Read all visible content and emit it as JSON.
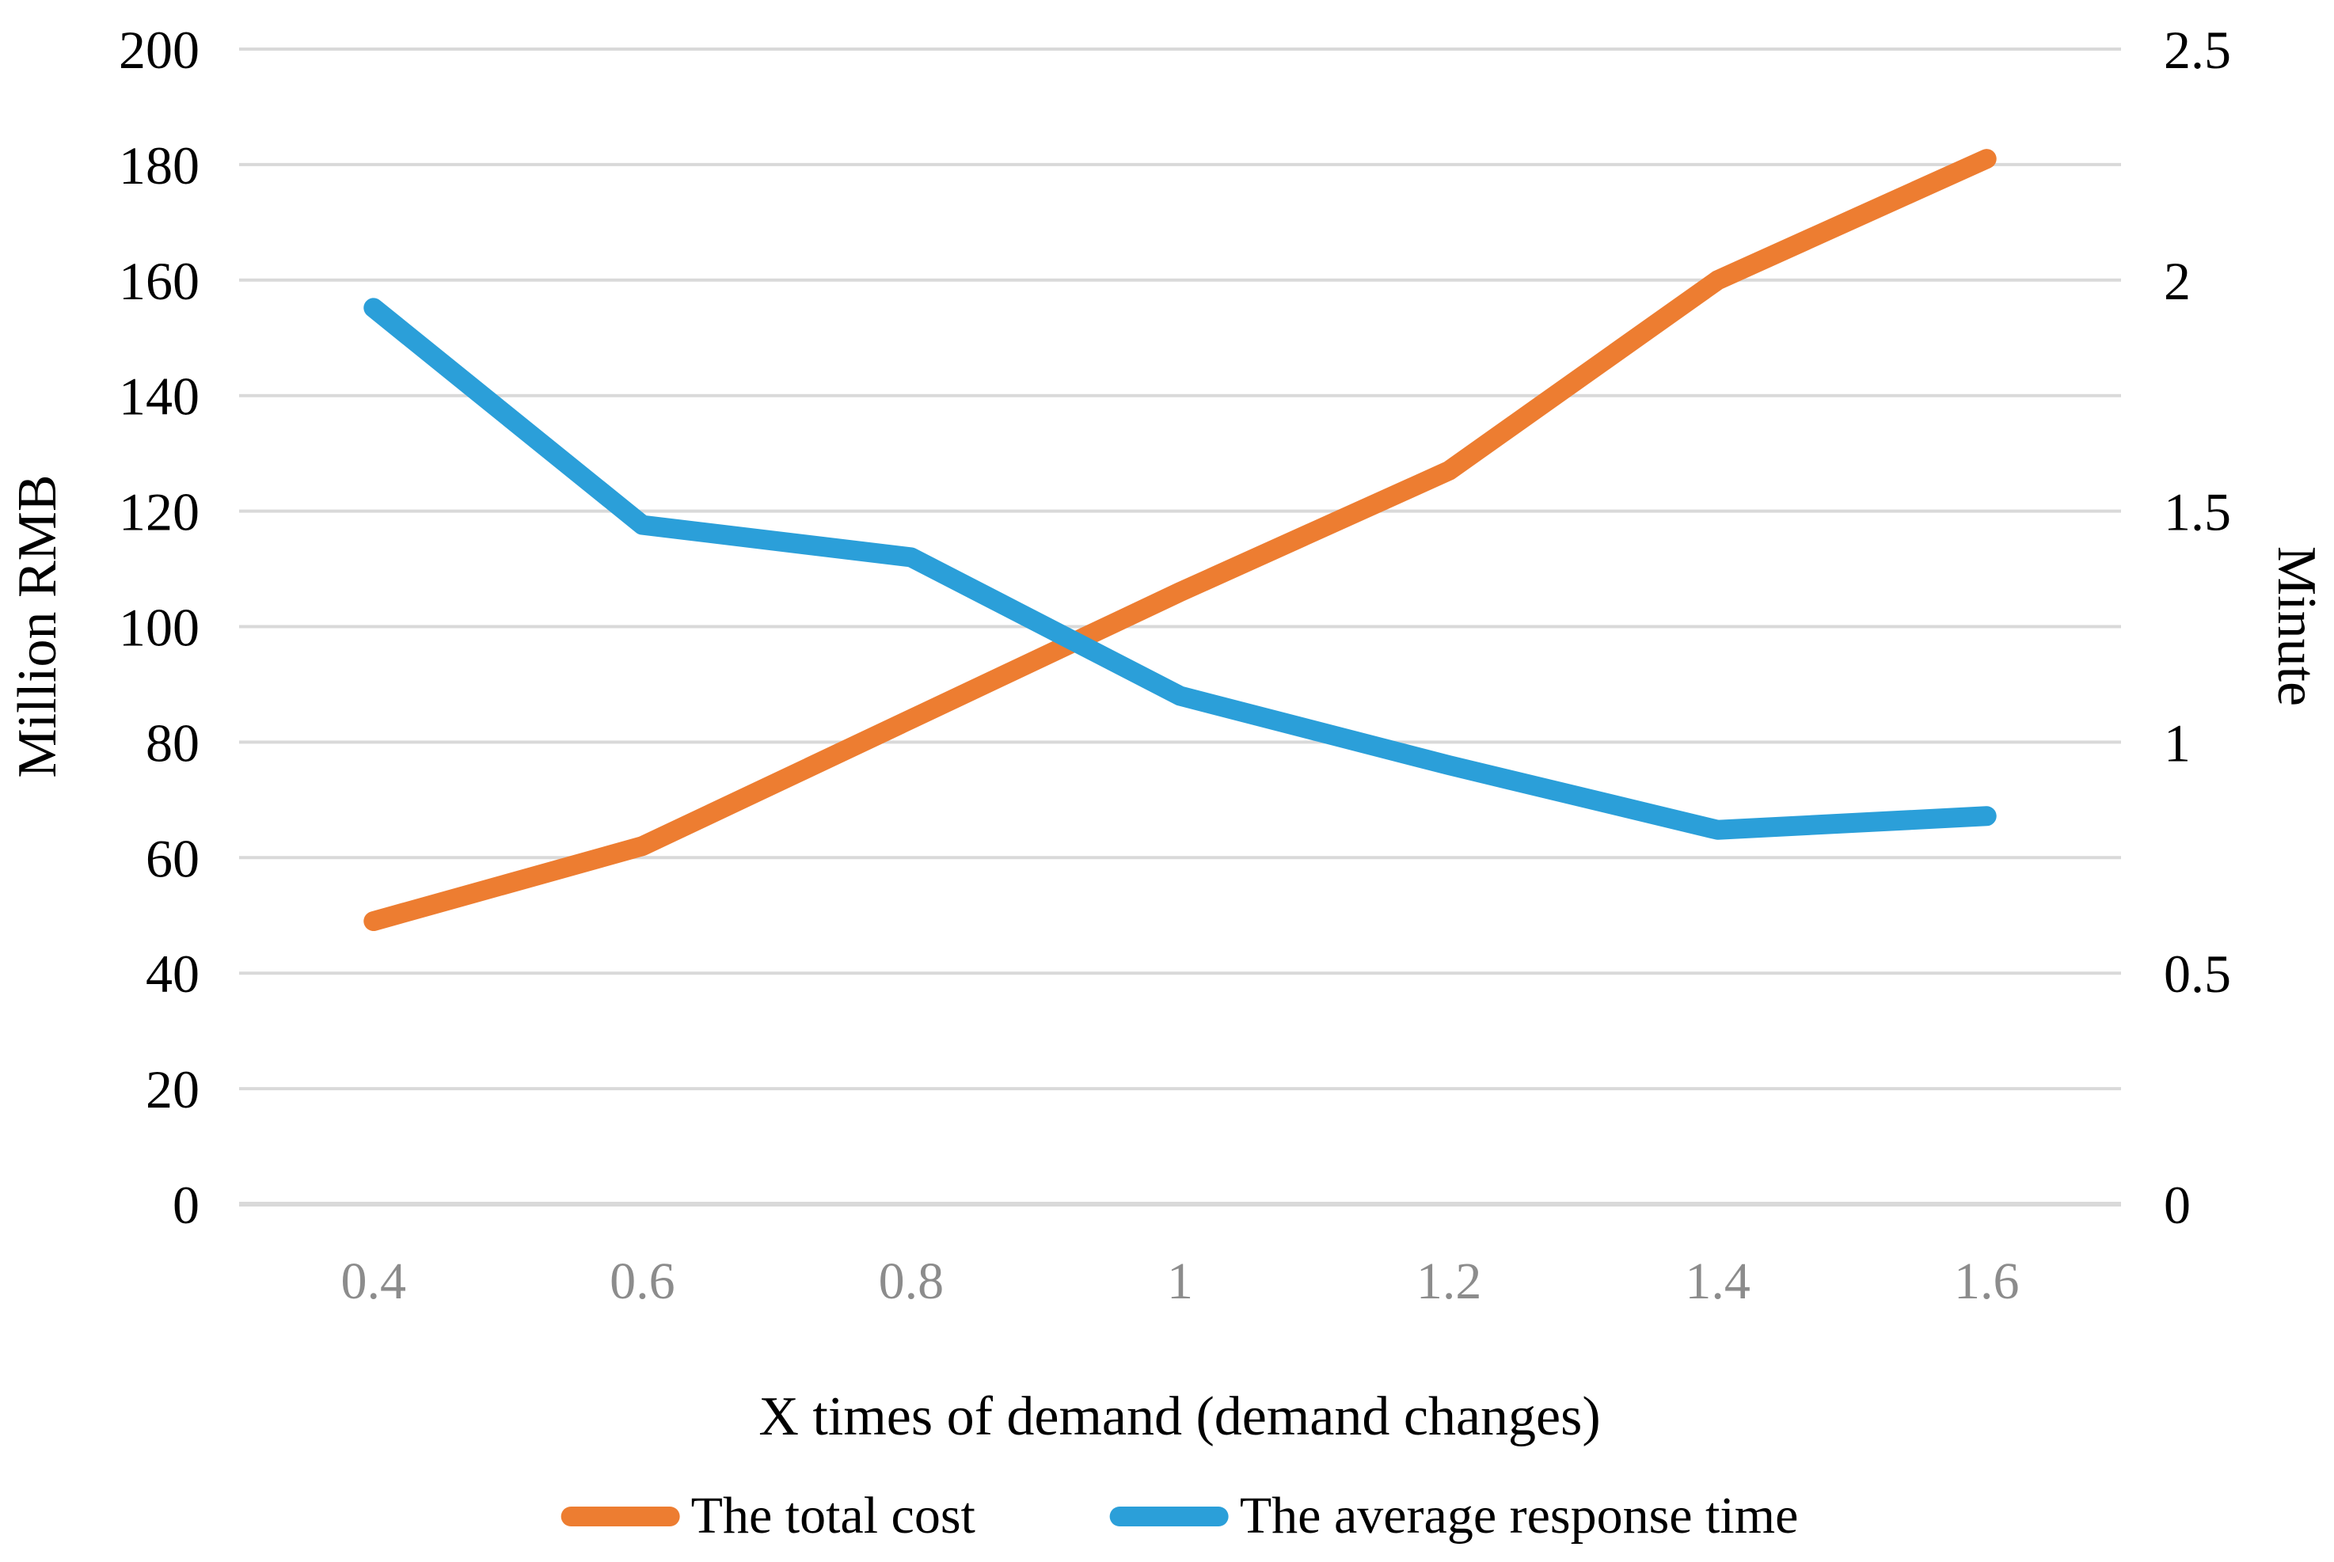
{
  "chart_data": {
    "type": "line",
    "title": "",
    "categories": [
      "0.4",
      "0.6",
      "0.8",
      "1",
      "1.2",
      "1.4",
      "1.6"
    ],
    "series": [
      {
        "name": "The total cost",
        "axis": "left",
        "color": "#ED7D31",
        "values": [
          49,
          62,
          84,
          106,
          127,
          160,
          181
        ]
      },
      {
        "name": "The average response time",
        "axis": "right",
        "color": "#2B9FD9",
        "values": [
          1.94,
          1.47,
          1.4,
          1.1,
          0.95,
          0.81,
          0.84
        ]
      }
    ],
    "xlabel": "X times of demand (demand changes)",
    "ylabel_left": "Million RMB",
    "ylabel_right": "Minute",
    "y_left": {
      "min": 0,
      "max": 200,
      "step": 20,
      "ticks": [
        "0",
        "20",
        "40",
        "60",
        "80",
        "100",
        "120",
        "140",
        "160",
        "180",
        "200"
      ]
    },
    "y_right": {
      "min": 0,
      "max": 2.5,
      "step": 0.5,
      "ticks": [
        "0",
        "0.5",
        "1",
        "1.5",
        "2",
        "2.5"
      ]
    },
    "grid": "horizontal",
    "legend_position": "bottom",
    "colors": {
      "gridline": "#D9D9D9",
      "axis_line": "#D9D9D9",
      "x_tick_label": "#8C8C8C",
      "y_tick_label": "#000000"
    }
  }
}
